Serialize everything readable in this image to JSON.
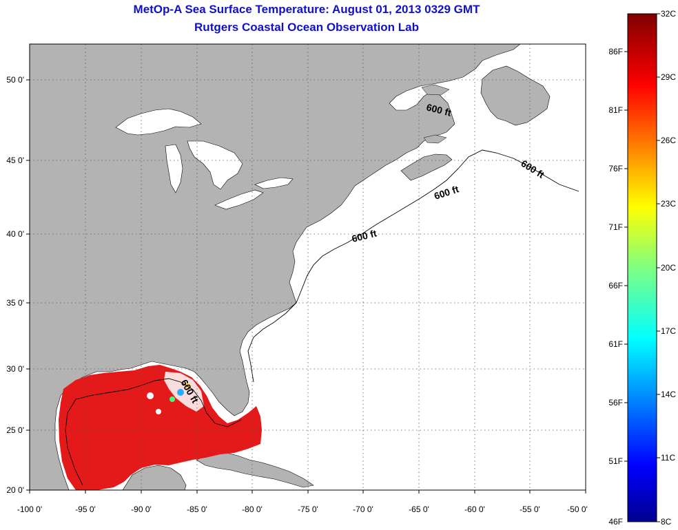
{
  "title": "MetOp-A Sea Surface Temperature:  August 01, 2013 0329 GMT",
  "subtitle": "Rutgers Coastal Ocean Observation Lab",
  "map": {
    "lon_range": [
      -100,
      -50
    ],
    "lat_range": [
      20,
      52.5
    ],
    "x_ticks": [
      "-100 0'",
      "-95 0'",
      "-90 0'",
      "-85 0'",
      "-80 0'",
      "-75 0'",
      "-70 0'",
      "-65 0'",
      "-60 0'",
      "-55 0'",
      "-50 0'"
    ],
    "y_ticks": [
      "20 0'",
      "25 0'",
      "30 0'",
      "35 0'",
      "40 0'",
      "45 0'",
      "50 0'"
    ],
    "depth_labels": [
      "600 ft",
      "600 ft",
      "600 ft",
      "600 ft",
      "600 ft"
    ],
    "land_color": "#b3b3b3",
    "ocean_color": "#ffffff",
    "sst_color": "#e41a1a"
  },
  "colorbar": {
    "celsius_labels": [
      "32C",
      "29C",
      "26C",
      "23C",
      "20C",
      "17C",
      "14C",
      "11C",
      "8C"
    ],
    "fahrenheit_labels": [
      "86F",
      "81F",
      "76F",
      "71F",
      "66F",
      "61F",
      "56F",
      "51F",
      "46F"
    ],
    "colormap": "jet",
    "range_c": [
      8,
      32
    ]
  }
}
